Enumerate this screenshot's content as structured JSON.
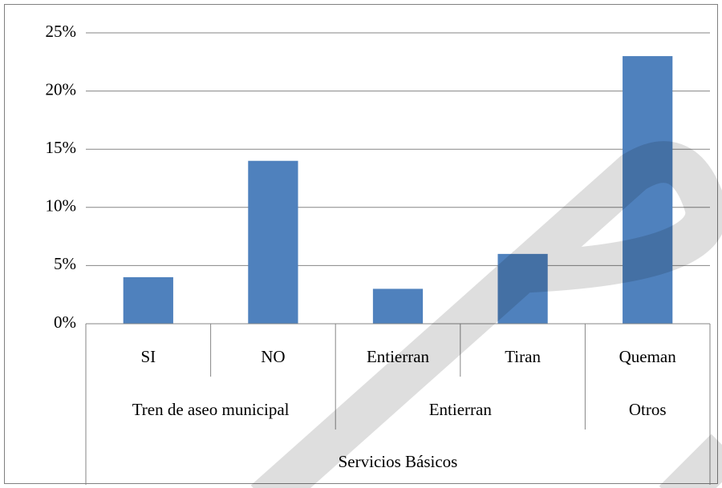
{
  "chart_data": {
    "type": "bar",
    "color": "#4f81bd",
    "grid": true,
    "axis_title": "Servicios Básicos",
    "groups": [
      {
        "name": "Tren de aseo municipal",
        "categories": [
          "SI",
          "NO"
        ],
        "values": [
          4,
          14
        ]
      },
      {
        "name": "Entierran",
        "categories": [
          "Entierran",
          "Tiran"
        ],
        "values": [
          3,
          6
        ]
      },
      {
        "name": "Otros",
        "categories": [
          "Queman"
        ],
        "values": [
          23
        ]
      }
    ],
    "ylim": [
      0,
      25
    ],
    "yticks": [
      {
        "value": 0,
        "label": "0%"
      },
      {
        "value": 5,
        "label": "5%"
      },
      {
        "value": 10,
        "label": "10%"
      },
      {
        "value": 15,
        "label": "15%"
      },
      {
        "value": 20,
        "label": "20%"
      },
      {
        "value": 25,
        "label": "25%"
      }
    ]
  }
}
